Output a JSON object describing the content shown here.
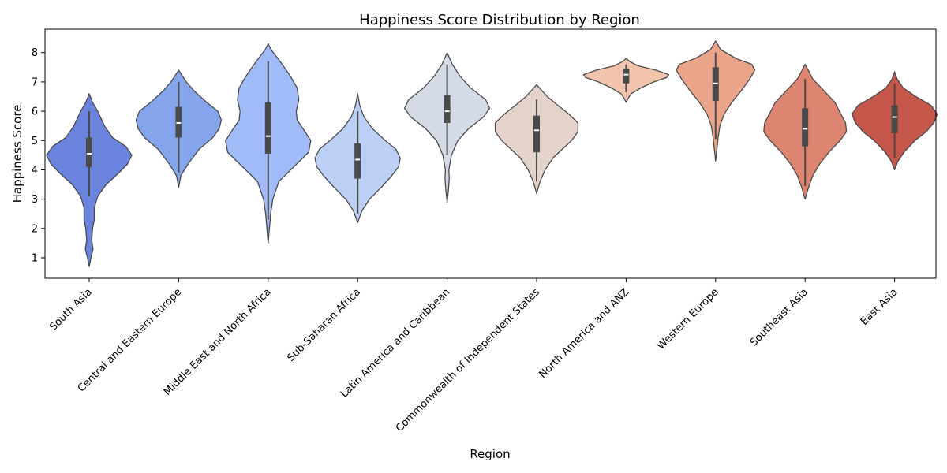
{
  "chart_data": {
    "type": "violin",
    "title": "Happiness Score Distribution by Region",
    "xlabel": "Region",
    "ylabel": "Happiness Score",
    "ylim": [
      0.3,
      8.8
    ],
    "yticks": [
      1,
      2,
      3,
      4,
      5,
      6,
      7,
      8
    ],
    "grid": false,
    "legend": "none",
    "categories": [
      "South Asia",
      "Central and Eastern Europe",
      "Middle East and North Africa",
      "Sub-Saharan Africa",
      "Latin America and Caribbean",
      "Commonwealth of Independent States",
      "North America and ANZ",
      "Western Europe",
      "Southeast Asia",
      "East Asia"
    ],
    "series": [
      {
        "region": "South Asia",
        "color": "#6a83dc",
        "range": [
          0.7,
          6.6
        ],
        "whisker": [
          3.1,
          6.0
        ],
        "q1": 4.1,
        "median": 4.55,
        "q3": 5.1,
        "density": [
          [
            0.7,
            0.0
          ],
          [
            1.0,
            0.04
          ],
          [
            1.3,
            0.09
          ],
          [
            1.6,
            0.06
          ],
          [
            2.0,
            0.08
          ],
          [
            2.3,
            0.12
          ],
          [
            2.7,
            0.12
          ],
          [
            3.1,
            0.2
          ],
          [
            3.5,
            0.4
          ],
          [
            3.9,
            0.7
          ],
          [
            4.2,
            0.9
          ],
          [
            4.5,
            1.0
          ],
          [
            4.8,
            0.86
          ],
          [
            5.1,
            0.55
          ],
          [
            5.5,
            0.36
          ],
          [
            6.0,
            0.2
          ],
          [
            6.3,
            0.08
          ],
          [
            6.6,
            0.0
          ]
        ]
      },
      {
        "region": "Central and Eastern Europe",
        "color": "#84a4eb",
        "range": [
          3.4,
          7.4
        ],
        "whisker": [
          3.9,
          7.0
        ],
        "q1": 5.1,
        "median": 5.6,
        "q3": 6.15,
        "density": [
          [
            3.4,
            0.0
          ],
          [
            3.8,
            0.05
          ],
          [
            4.2,
            0.22
          ],
          [
            4.7,
            0.48
          ],
          [
            5.1,
            0.8
          ],
          [
            5.4,
            0.95
          ],
          [
            5.7,
            1.0
          ],
          [
            6.0,
            0.92
          ],
          [
            6.3,
            0.66
          ],
          [
            6.7,
            0.36
          ],
          [
            7.0,
            0.18
          ],
          [
            7.4,
            0.0
          ]
        ]
      },
      {
        "region": "Middle East and North Africa",
        "color": "#a0bbf7",
        "range": [
          1.5,
          8.3
        ],
        "whisker": [
          2.3,
          7.7
        ],
        "q1": 4.55,
        "median": 5.15,
        "q3": 6.3,
        "density": [
          [
            1.5,
            0.0
          ],
          [
            2.0,
            0.03
          ],
          [
            2.5,
            0.06
          ],
          [
            3.0,
            0.11
          ],
          [
            3.6,
            0.25
          ],
          [
            4.1,
            0.6
          ],
          [
            4.6,
            0.95
          ],
          [
            5.0,
            1.0
          ],
          [
            5.4,
            0.82
          ],
          [
            5.7,
            0.68
          ],
          [
            6.0,
            0.66
          ],
          [
            6.4,
            0.72
          ],
          [
            6.8,
            0.68
          ],
          [
            7.2,
            0.52
          ],
          [
            7.7,
            0.28
          ],
          [
            8.1,
            0.07
          ],
          [
            8.3,
            0.0
          ]
        ]
      },
      {
        "region": "Sub-Saharan Africa",
        "color": "#bccff5",
        "range": [
          2.2,
          6.6
        ],
        "whisker": [
          2.5,
          6.0
        ],
        "q1": 3.7,
        "median": 4.35,
        "q3": 4.9,
        "density": [
          [
            2.2,
            0.0
          ],
          [
            2.6,
            0.1
          ],
          [
            3.0,
            0.28
          ],
          [
            3.4,
            0.55
          ],
          [
            3.8,
            0.8
          ],
          [
            4.1,
            0.96
          ],
          [
            4.4,
            1.0
          ],
          [
            4.7,
            0.9
          ],
          [
            5.0,
            0.65
          ],
          [
            5.4,
            0.35
          ],
          [
            5.8,
            0.15
          ],
          [
            6.2,
            0.05
          ],
          [
            6.6,
            0.0
          ]
        ]
      },
      {
        "region": "Latin America and Caribbean",
        "color": "#d4dbe6",
        "range": [
          2.9,
          8.0
        ],
        "whisker": [
          4.5,
          7.6
        ],
        "q1": 5.6,
        "median": 6.0,
        "q3": 6.55,
        "density": [
          [
            2.9,
            0.0
          ],
          [
            3.3,
            0.03
          ],
          [
            3.7,
            0.05
          ],
          [
            4.0,
            0.04
          ],
          [
            4.5,
            0.1
          ],
          [
            5.0,
            0.25
          ],
          [
            5.4,
            0.5
          ],
          [
            5.8,
            0.85
          ],
          [
            6.1,
            1.0
          ],
          [
            6.4,
            0.9
          ],
          [
            6.8,
            0.55
          ],
          [
            7.2,
            0.3
          ],
          [
            7.6,
            0.12
          ],
          [
            8.0,
            0.0
          ]
        ]
      },
      {
        "region": "Commonwealth of Independent States",
        "color": "#e4d3cb",
        "range": [
          3.2,
          6.9
        ],
        "whisker": [
          3.6,
          6.4
        ],
        "q1": 4.6,
        "median": 5.35,
        "q3": 5.85,
        "density": [
          [
            3.2,
            0.0
          ],
          [
            3.6,
            0.08
          ],
          [
            4.0,
            0.2
          ],
          [
            4.4,
            0.38
          ],
          [
            4.7,
            0.6
          ],
          [
            5.0,
            0.82
          ],
          [
            5.3,
            0.97
          ],
          [
            5.6,
            0.97
          ],
          [
            5.9,
            0.76
          ],
          [
            6.2,
            0.5
          ],
          [
            6.5,
            0.25
          ],
          [
            6.9,
            0.0
          ]
        ]
      },
      {
        "region": "North America and ANZ",
        "color": "#f2c4ae",
        "range": [
          6.3,
          7.8
        ],
        "whisker": [
          6.65,
          7.6
        ],
        "q1": 6.95,
        "median": 7.25,
        "q3": 7.45,
        "density": [
          [
            6.3,
            0.0
          ],
          [
            6.45,
            0.05
          ],
          [
            6.6,
            0.12
          ],
          [
            6.8,
            0.35
          ],
          [
            7.0,
            0.65
          ],
          [
            7.15,
            0.95
          ],
          [
            7.25,
            1.0
          ],
          [
            7.4,
            0.7
          ],
          [
            7.55,
            0.28
          ],
          [
            7.7,
            0.08
          ],
          [
            7.8,
            0.0
          ]
        ]
      },
      {
        "region": "Western Europe",
        "color": "#eaa48a",
        "range": [
          4.3,
          8.4
        ],
        "whisker": [
          5.05,
          8.0
        ],
        "q1": 6.35,
        "median": 6.95,
        "q3": 7.5,
        "density": [
          [
            4.3,
            0.0
          ],
          [
            4.7,
            0.03
          ],
          [
            5.1,
            0.06
          ],
          [
            5.5,
            0.1
          ],
          [
            5.9,
            0.2
          ],
          [
            6.3,
            0.38
          ],
          [
            6.7,
            0.6
          ],
          [
            7.1,
            0.8
          ],
          [
            7.4,
            0.92
          ],
          [
            7.6,
            0.85
          ],
          [
            7.8,
            0.48
          ],
          [
            8.1,
            0.12
          ],
          [
            8.4,
            0.0
          ]
        ]
      },
      {
        "region": "Southeast Asia",
        "color": "#dd8570",
        "range": [
          3.0,
          7.6
        ],
        "whisker": [
          3.45,
          7.1
        ],
        "q1": 4.8,
        "median": 5.4,
        "q3": 6.1,
        "density": [
          [
            3.0,
            0.0
          ],
          [
            3.4,
            0.08
          ],
          [
            3.8,
            0.18
          ],
          [
            4.2,
            0.34
          ],
          [
            4.6,
            0.56
          ],
          [
            5.0,
            0.82
          ],
          [
            5.3,
            0.97
          ],
          [
            5.6,
            0.95
          ],
          [
            5.9,
            0.84
          ],
          [
            6.3,
            0.7
          ],
          [
            6.7,
            0.44
          ],
          [
            7.1,
            0.18
          ],
          [
            7.6,
            0.0
          ]
        ]
      },
      {
        "region": "East Asia",
        "color": "#c4574a",
        "range": [
          4.0,
          7.35
        ],
        "whisker": [
          4.4,
          6.95
        ],
        "q1": 5.25,
        "median": 5.8,
        "q3": 6.2,
        "density": [
          [
            4.0,
            0.0
          ],
          [
            4.3,
            0.08
          ],
          [
            4.6,
            0.22
          ],
          [
            5.0,
            0.48
          ],
          [
            5.3,
            0.74
          ],
          [
            5.6,
            0.92
          ],
          [
            5.9,
            1.0
          ],
          [
            6.2,
            0.86
          ],
          [
            6.5,
            0.5
          ],
          [
            6.8,
            0.2
          ],
          [
            7.1,
            0.06
          ],
          [
            7.35,
            0.0
          ]
        ]
      }
    ]
  }
}
